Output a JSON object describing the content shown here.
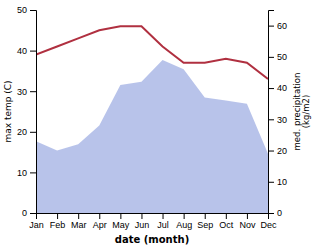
{
  "chart_data": {
    "type": "line",
    "categories": [
      "Jan",
      "Feb",
      "Mar",
      "Apr",
      "May",
      "Jun",
      "Jul",
      "Aug",
      "Sep",
      "Oct",
      "Nov",
      "Dec"
    ],
    "xlabel": "date (month)",
    "ylabel": "max temp (C)",
    "y2label": "med. precipitation\n(kg/m2)",
    "series": [
      {
        "type": "line",
        "color": "#b03040",
        "values": [
          39,
          41,
          43,
          45,
          46,
          46,
          41,
          37,
          37,
          38,
          37,
          33
        ]
      },
      {
        "type": "area",
        "axis": "y2",
        "color": "#b0bce8",
        "values": [
          23,
          20,
          22,
          28,
          41,
          42,
          49,
          46,
          37,
          36,
          35,
          19
        ]
      }
    ],
    "ylim": [
      0,
      50
    ],
    "yticks": [
      0,
      10,
      20,
      30,
      40,
      50
    ],
    "y2lim": [
      0,
      65
    ],
    "y2ticks": [
      0,
      10,
      20,
      30,
      40,
      50,
      60
    ]
  }
}
